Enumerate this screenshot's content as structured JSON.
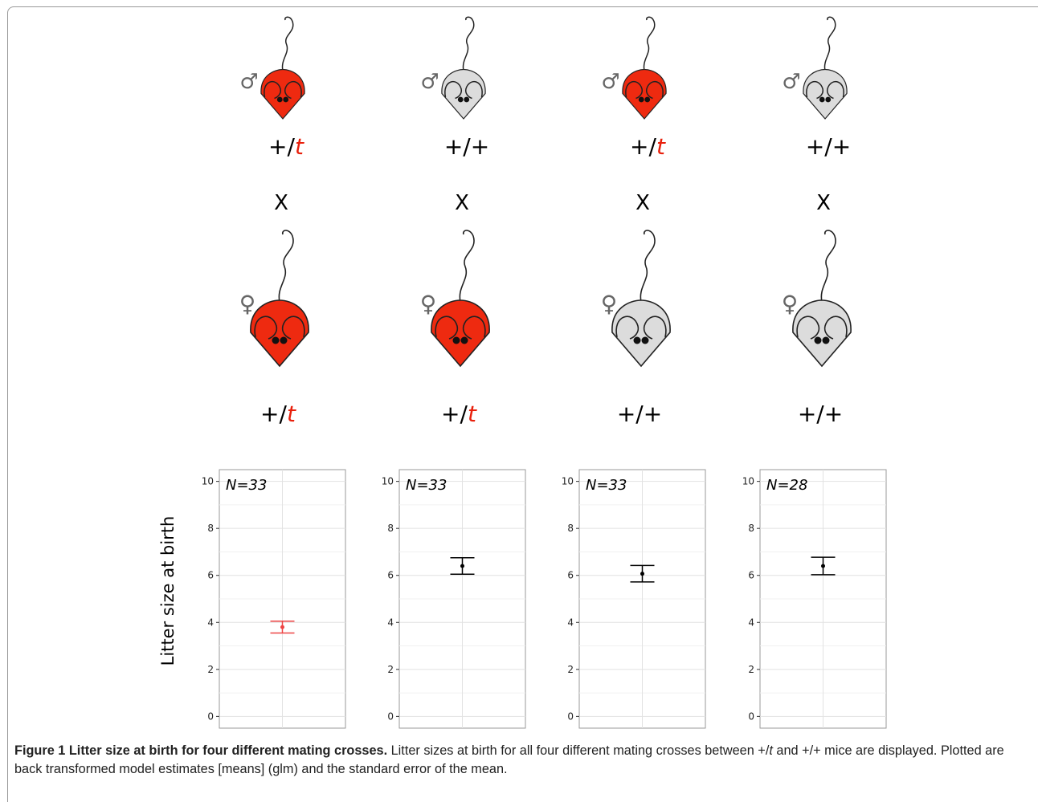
{
  "male_symbol": "♂",
  "female_symbol": "♀",
  "cross_mark": "X",
  "crosses": [
    {
      "male_color": "#ee2a10",
      "male_genotype": [
        "+/",
        "t"
      ],
      "female_color": "#ee2a10",
      "female_genotype": [
        "+/",
        "t"
      ]
    },
    {
      "male_color": "#dcdcdc",
      "male_genotype": [
        "+/+"
      ],
      "female_color": "#ee2a10",
      "female_genotype": [
        "+/",
        "t"
      ]
    },
    {
      "male_color": "#ee2a10",
      "male_genotype": [
        "+/",
        "t"
      ],
      "female_color": "#dcdcdc",
      "female_genotype": [
        "+/+"
      ]
    },
    {
      "male_color": "#dcdcdc",
      "male_genotype": [
        "+/+"
      ],
      "female_color": "#dcdcdc",
      "female_genotype": [
        "+/+"
      ]
    }
  ],
  "chart_data": [
    {
      "type": "errorbar",
      "y_label": "Litter size at birth",
      "annotation": "N=33",
      "values": [
        3.8
      ],
      "errors": [
        0.25
      ],
      "color": "#ee4444",
      "ylim": [
        -0.5,
        10.5
      ],
      "yticks": [
        0,
        2,
        4,
        6,
        8,
        10
      ],
      "minor_yticks": [
        1,
        3,
        5,
        7,
        9
      ],
      "grid": true
    },
    {
      "type": "errorbar",
      "annotation": "N=33",
      "values": [
        6.4
      ],
      "errors": [
        0.35
      ],
      "color": "#000000",
      "ylim": [
        -0.5,
        10.5
      ],
      "yticks": [
        0,
        2,
        4,
        6,
        8,
        10
      ],
      "minor_yticks": [
        1,
        3,
        5,
        7,
        9
      ],
      "grid": true
    },
    {
      "type": "errorbar",
      "annotation": "N=33",
      "values": [
        6.07
      ],
      "errors": [
        0.35
      ],
      "color": "#000000",
      "ylim": [
        -0.5,
        10.5
      ],
      "yticks": [
        0,
        2,
        4,
        6,
        8,
        10
      ],
      "minor_yticks": [
        1,
        3,
        5,
        7,
        9
      ],
      "grid": true
    },
    {
      "type": "errorbar",
      "annotation": "N=28",
      "values": [
        6.4
      ],
      "errors": [
        0.37
      ],
      "color": "#000000",
      "ylim": [
        -0.5,
        10.5
      ],
      "yticks": [
        0,
        2,
        4,
        6,
        8,
        10
      ],
      "minor_yticks": [
        1,
        3,
        5,
        7,
        9
      ],
      "grid": true
    }
  ],
  "caption": {
    "title": "Figure 1 Litter size at birth for four different mating crosses.",
    "text_parts": [
      " Litter sizes at birth for all four different mating crosses between +/",
      "t",
      " and +/+ mice are displayed. Plotted are back transformed model estimates [means] (glm) and the standard error of the mean."
    ]
  }
}
